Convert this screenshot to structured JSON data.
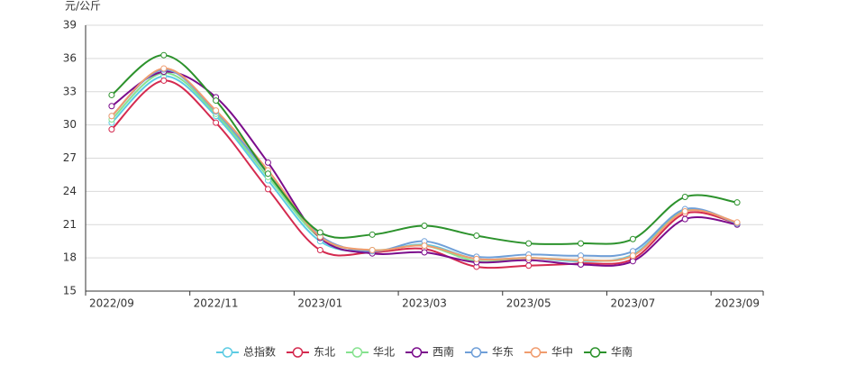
{
  "chart_data": {
    "type": "line",
    "y_label": "元/公斤",
    "categories": [
      "2022/09",
      null,
      "2022/11",
      null,
      "2023/01",
      null,
      "2023/03",
      null,
      "2023/05",
      null,
      "2023/07",
      null,
      "2023/09"
    ],
    "ylim": [
      15,
      39
    ],
    "yticks": [
      15,
      18,
      21,
      24,
      27,
      30,
      33,
      36,
      39
    ],
    "grid": true,
    "smooth": true,
    "legend": "bottom",
    "series": [
      {
        "name": "总指数",
        "color": "#5ccbe3",
        "values": [
          30.2,
          34.4,
          30.8,
          25.0,
          19.5,
          18.6,
          19.2,
          17.9,
          18.0,
          17.7,
          18.3,
          22.3,
          21.1
        ]
      },
      {
        "name": "东北",
        "color": "#d42a4f",
        "values": [
          29.6,
          34.0,
          30.2,
          24.2,
          18.7,
          18.5,
          18.8,
          17.2,
          17.3,
          17.5,
          17.9,
          22.0,
          21.1
        ]
      },
      {
        "name": "华北",
        "color": "#86e28f",
        "values": [
          30.5,
          34.7,
          31.0,
          25.3,
          19.8,
          18.7,
          19.1,
          17.7,
          18.0,
          17.8,
          18.2,
          22.3,
          21.1
        ]
      },
      {
        "name": "西南",
        "color": "#7b0c8c",
        "values": [
          31.7,
          34.8,
          32.5,
          26.6,
          19.8,
          18.4,
          18.5,
          17.6,
          17.8,
          17.4,
          17.7,
          21.5,
          21.0
        ]
      },
      {
        "name": "华东",
        "color": "#6f9fd8",
        "values": [
          30.8,
          35.0,
          31.2,
          25.6,
          20.0,
          18.6,
          19.5,
          18.1,
          18.3,
          18.2,
          18.6,
          22.4,
          21.1
        ]
      },
      {
        "name": "华中",
        "color": "#f09c6e",
        "values": [
          30.8,
          35.1,
          31.3,
          25.9,
          19.9,
          18.7,
          19.1,
          17.9,
          18.0,
          17.8,
          18.2,
          22.2,
          21.2
        ]
      },
      {
        "name": "华南",
        "color": "#2c922c",
        "values": [
          32.7,
          36.3,
          32.2,
          25.6,
          20.3,
          20.1,
          20.9,
          20.0,
          19.3,
          19.3,
          19.7,
          23.5,
          23.0
        ]
      }
    ]
  }
}
